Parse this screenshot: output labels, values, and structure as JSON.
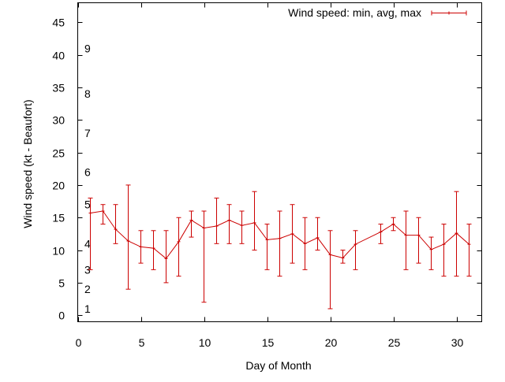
{
  "chart_data": {
    "type": "line",
    "title": "",
    "xlabel": "Day of Month",
    "ylabel": "Wind speed (kt - Beaufort)",
    "xlim": [
      0,
      32
    ],
    "ylim": [
      -1,
      48
    ],
    "x_ticks": [
      0,
      5,
      10,
      15,
      20,
      25,
      30
    ],
    "y_ticks": [
      0,
      5,
      10,
      15,
      20,
      25,
      30,
      35,
      40,
      45
    ],
    "grid": false,
    "legend": "top-right",
    "colors": {
      "series": "#cc0000",
      "axes": "#000000"
    },
    "beaufort_labels": [
      {
        "text": "1",
        "y": 1
      },
      {
        "text": "2",
        "y": 4
      },
      {
        "text": "3",
        "y": 7
      },
      {
        "text": "4",
        "y": 11
      },
      {
        "text": "5",
        "y": 17
      },
      {
        "text": "6",
        "y": 22
      },
      {
        "text": "7",
        "y": 28
      },
      {
        "text": "8",
        "y": 34
      },
      {
        "text": "9",
        "y": 41
      }
    ],
    "series": [
      {
        "name": "Wind speed: min, avg, max",
        "style": "yerrorlines",
        "points": [
          {
            "x": 1,
            "min": 7,
            "avg": 15.7,
            "max": 18
          },
          {
            "x": 2,
            "min": 14,
            "avg": 16.0,
            "max": 17
          },
          {
            "x": 3,
            "min": 11,
            "avg": 13.2,
            "max": 17
          },
          {
            "x": 4,
            "min": 4,
            "avg": 11.4,
            "max": 20
          },
          {
            "x": 5,
            "min": 8,
            "avg": 10.5,
            "max": 13
          },
          {
            "x": 6,
            "min": 7,
            "avg": 10.3,
            "max": 13
          },
          {
            "x": 7,
            "min": 5,
            "avg": 8.7,
            "max": 13
          },
          {
            "x": 8,
            "min": 6,
            "avg": 11.3,
            "max": 15
          },
          {
            "x": 9,
            "min": 12,
            "avg": 14.6,
            "max": 16
          },
          {
            "x": 10,
            "min": 2,
            "avg": 13.4,
            "max": 16
          },
          {
            "x": 11,
            "min": 11,
            "avg": 13.7,
            "max": 18
          },
          {
            "x": 12,
            "min": 11,
            "avg": 14.6,
            "max": 17
          },
          {
            "x": 13,
            "min": 11,
            "avg": 13.8,
            "max": 16
          },
          {
            "x": 14,
            "min": 10,
            "avg": 14.2,
            "max": 19
          },
          {
            "x": 15,
            "min": 7,
            "avg": 11.6,
            "max": 14
          },
          {
            "x": 16,
            "min": 6,
            "avg": 11.8,
            "max": 16
          },
          {
            "x": 17,
            "min": 8,
            "avg": 12.5,
            "max": 17
          },
          {
            "x": 18,
            "min": 7,
            "avg": 11.0,
            "max": 15
          },
          {
            "x": 19,
            "min": 10,
            "avg": 11.9,
            "max": 15
          },
          {
            "x": 20,
            "min": 1,
            "avg": 9.3,
            "max": 13
          },
          {
            "x": 21,
            "min": 8,
            "avg": 8.8,
            "max": 10
          },
          {
            "x": 22,
            "min": 7,
            "avg": 10.9,
            "max": 13
          },
          {
            "x": 24,
            "min": 11,
            "avg": 12.8,
            "max": 14
          },
          {
            "x": 25,
            "min": 13,
            "avg": 14.0,
            "max": 15
          },
          {
            "x": 26,
            "min": 7,
            "avg": 12.3,
            "max": 16
          },
          {
            "x": 27,
            "min": 8,
            "avg": 12.3,
            "max": 15
          },
          {
            "x": 28,
            "min": 7,
            "avg": 10.1,
            "max": 12
          },
          {
            "x": 29,
            "min": 6,
            "avg": 10.9,
            "max": 14
          },
          {
            "x": 30,
            "min": 6,
            "avg": 12.6,
            "max": 19
          },
          {
            "x": 31,
            "min": 6,
            "avg": 10.9,
            "max": 14
          }
        ]
      }
    ]
  }
}
